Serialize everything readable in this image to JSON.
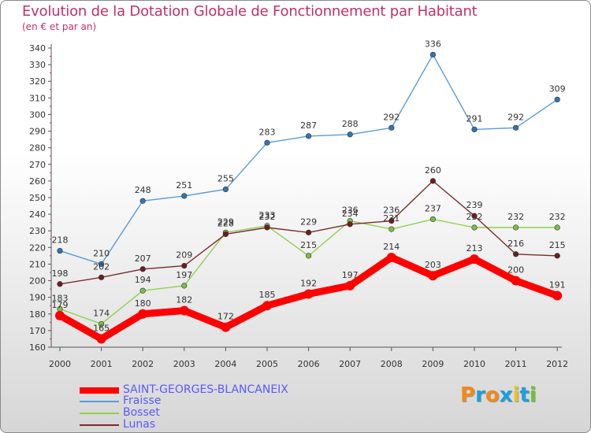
{
  "header": {
    "title": "Evolution de la Dotation Globale de Fonctionnement par Habitant",
    "subtitle": "(en € et par an)"
  },
  "logo": {
    "text": "Proxiti",
    "letters": [
      "P",
      "r",
      "o",
      "x",
      "i",
      "t",
      "i"
    ],
    "letter_colors": [
      "#f08a1a",
      "#1aa0e0",
      "#f08a1a",
      "#1aa0e0",
      "#f0c020",
      "#1aa0e0",
      "#70c030"
    ]
  },
  "chart_data": {
    "type": "line",
    "title": "Evolution de la Dotation Globale de Fonctionnement par Habitant",
    "subtitle": "(en € et par an)",
    "xlabel": "",
    "ylabel": "",
    "ylim": [
      160,
      340
    ],
    "y_ticks": [
      160,
      170,
      180,
      190,
      200,
      210,
      220,
      230,
      240,
      250,
      260,
      270,
      280,
      290,
      300,
      310,
      320,
      330,
      340
    ],
    "categories": [
      "2000",
      "2001",
      "2002",
      "2003",
      "2004",
      "2005",
      "2006",
      "2007",
      "2008",
      "2009",
      "2010",
      "2011",
      "2012"
    ],
    "grid": false,
    "legend_position": "bottom-left",
    "series": [
      {
        "name": "Fraisse",
        "color": "#5b9bd5",
        "marker_color": "#2f75b5",
        "values": [
          218,
          210,
          248,
          251,
          255,
          283,
          287,
          288,
          292,
          336,
          291,
          292,
          309
        ]
      },
      {
        "name": "Bosset",
        "color": "#92d050",
        "marker_color": "#7bc043",
        "values": [
          183,
          174,
          194,
          197,
          229,
          233,
          215,
          236,
          231,
          237,
          232,
          232,
          232
        ]
      },
      {
        "name": "Lunas",
        "color": "#7b2c2c",
        "marker_color": "#6b1e1e",
        "values": [
          198,
          202,
          207,
          209,
          228,
          232,
          229,
          234,
          236,
          260,
          239,
          216,
          215
        ]
      },
      {
        "name": "SAINT-GEORGES-BLANCANEIX",
        "color": "#ff0000",
        "marker_color": "#ff0000",
        "values": [
          179,
          165,
          180,
          182,
          172,
          185,
          192,
          197,
          214,
          203,
          213,
          200,
          191
        ]
      }
    ]
  },
  "legend": {
    "items": [
      {
        "label": "SAINT-GEORGES-BLANCANEIX",
        "color": "#ff0000"
      },
      {
        "label": "Fraisse",
        "color": "#5b9bd5"
      },
      {
        "label": "Bosset",
        "color": "#92d050"
      },
      {
        "label": "Lunas",
        "color": "#7b2c2c"
      }
    ]
  }
}
